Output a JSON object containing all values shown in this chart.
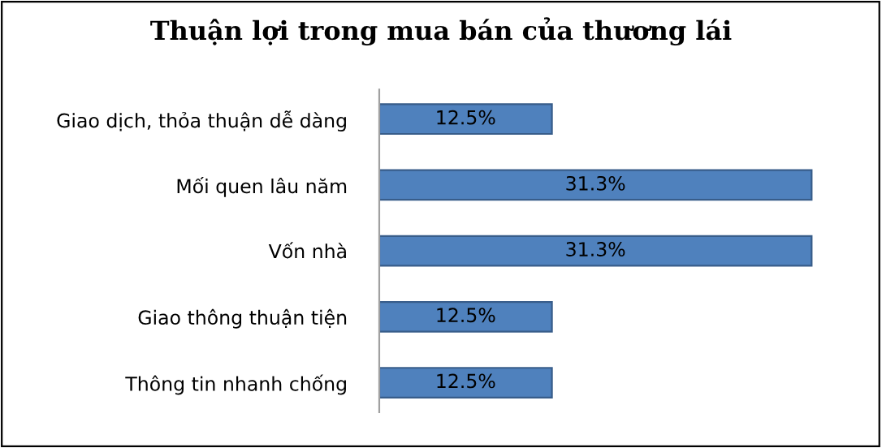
{
  "chart_data": {
    "type": "bar",
    "orientation": "horizontal",
    "title": "Thuận lợi trong mua bán của thương lái",
    "categories": [
      "Giao dịch, thỏa thuận dễ dàng",
      "Mối quen lâu năm",
      "Vốn nhà",
      "Giao thông thuận tiện",
      "Thông tin nhanh chống"
    ],
    "values": [
      12.5,
      31.3,
      31.3,
      12.5,
      12.5
    ],
    "value_labels": [
      "12.5%",
      "31.3%",
      "31.3%",
      "12.5%",
      "12.5%"
    ],
    "color": "#4f81bd",
    "grid": false,
    "tick_labels": "y"
  }
}
